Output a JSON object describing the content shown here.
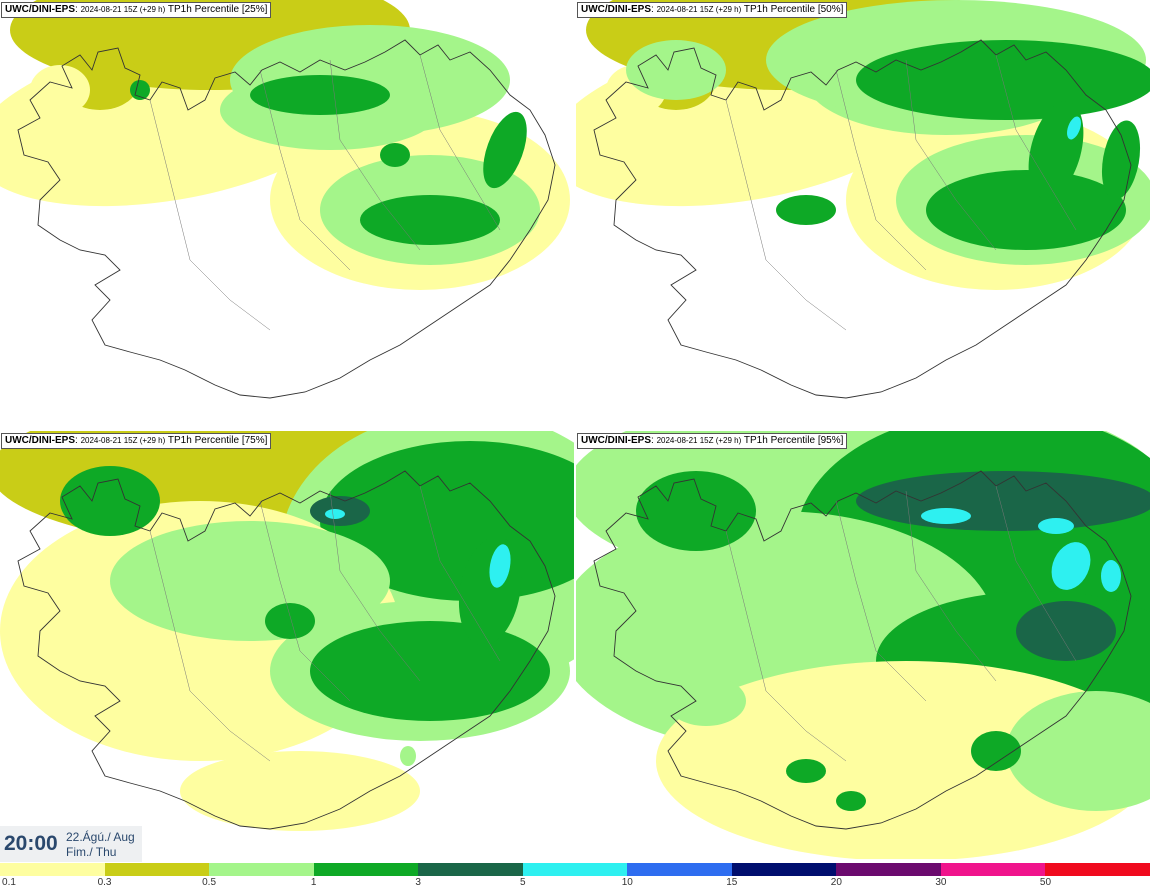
{
  "panels": [
    {
      "model": "UWC/DINI-EPS",
      "run": "2024-08-21 15Z (+29 h)",
      "product": "TP1h Percentile [25%]",
      "percentile": 25
    },
    {
      "model": "UWC/DINI-EPS",
      "run": "2024-08-21 15Z (+29 h)",
      "product": "TP1h Percentile [50%]",
      "percentile": 50
    },
    {
      "model": "UWC/DINI-EPS",
      "run": "2024-08-21 15Z (+29 h)",
      "product": "TP1h Percentile [75%]",
      "percentile": 75
    },
    {
      "model": "UWC/DINI-EPS",
      "run": "2024-08-21 15Z (+29 h)",
      "product": "TP1h Percentile [95%]",
      "percentile": 95
    }
  ],
  "valid_time": {
    "time": "20:00",
    "date_line1": "22.Ágú./ Aug",
    "date_line2": "Fim./ Thu"
  },
  "colorbar": {
    "colors": [
      "#fefea0",
      "#c9cd17",
      "#a4f58a",
      "#0ea926",
      "#1a6648",
      "#2ef0f0",
      "#2e6df0",
      "#000e6e",
      "#6b0a6e",
      "#f0148c",
      "#f00a1e"
    ],
    "ticks": [
      "0.1",
      "0.3",
      "0.5",
      "1",
      "3",
      "5",
      "10",
      "15",
      "20",
      "30",
      "50"
    ]
  },
  "legend_colors": {
    "c01": "#fefea0",
    "c03": "#c9cd17",
    "c05": "#a4f58a",
    "c1": "#0ea926",
    "c3": "#1a6648",
    "c5": "#2ef0f0"
  }
}
